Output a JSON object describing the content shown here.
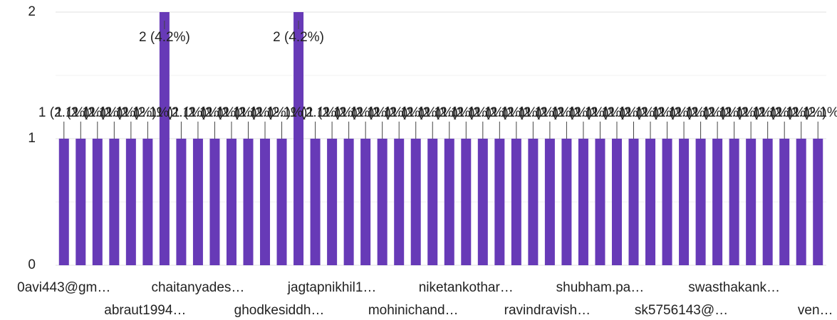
{
  "chart_data": {
    "type": "bar",
    "categories": [
      "0avi443@gm…",
      null,
      null,
      null,
      "abraut1994…",
      null,
      null,
      null,
      "chaitanyades…",
      null,
      null,
      null,
      "ghodkesiddh…",
      null,
      null,
      null,
      "jagtapnikhil1…",
      null,
      null,
      null,
      "mohinichand…",
      null,
      null,
      null,
      "niketankothar…",
      null,
      null,
      null,
      "ravindravish…",
      null,
      null,
      null,
      "shubham.pa…",
      null,
      null,
      null,
      "sk5756143@…",
      null,
      null,
      null,
      "swasthakank…",
      null,
      null,
      null,
      "ven…",
      null
    ],
    "values": [
      1,
      1,
      1,
      1,
      1,
      1,
      2,
      1,
      1,
      1,
      1,
      1,
      1,
      1,
      2,
      1,
      1,
      1,
      1,
      1,
      1,
      1,
      1,
      1,
      1,
      1,
      1,
      1,
      1,
      1,
      1,
      1,
      1,
      1,
      1,
      1,
      1,
      1,
      1,
      1,
      1,
      1,
      1,
      1,
      1,
      1
    ],
    "value_labels": [
      "1 (2.1%)",
      "1 (2.1%)",
      "1 (2.1%)",
      "1 (2.1%)",
      "1 (2.1%)",
      "1 (2.1%)",
      "2 (4.2%)",
      "1 (2.1%)",
      "1 (2.1%)",
      "1 (2.1%)",
      "1 (2.1%)",
      "1 (2.1%)",
      "1 (2.1%)",
      "1 (2.1%)",
      "2 (4.2%)",
      "1 (2.1%)",
      "1 (2.1%)",
      "1 (2.1%)",
      "1 (2.1%)",
      "1 (2.1%)",
      "1 (2.1%)",
      "1 (2.1%)",
      "1 (2.1%)",
      "1 (2.1%)",
      "1 (2.1%)",
      "1 (2.1%)",
      "1 (2.1%)",
      "1 (2.1%)",
      "1 (2.1%)",
      "1 (2.1%)",
      "1 (2.1%)",
      "1 (2.1%)",
      "1 (2.1%)",
      "1 (2.1%)",
      "1 (2.1%)",
      "1 (2.1%)",
      "1 (2.1%)",
      "1 (2.1%)",
      "1 (2.1%)",
      "1 (2.1%)",
      "1 (2.1%)",
      "1 (2.1%)",
      "1 (2.1%)",
      "1 (2.1%)",
      "1 (2.1%)",
      "1 (2.1%)"
    ],
    "color": "#673ab7",
    "ylim": [
      0,
      2
    ],
    "yticks": [
      0,
      1,
      2
    ],
    "grid": true
  }
}
